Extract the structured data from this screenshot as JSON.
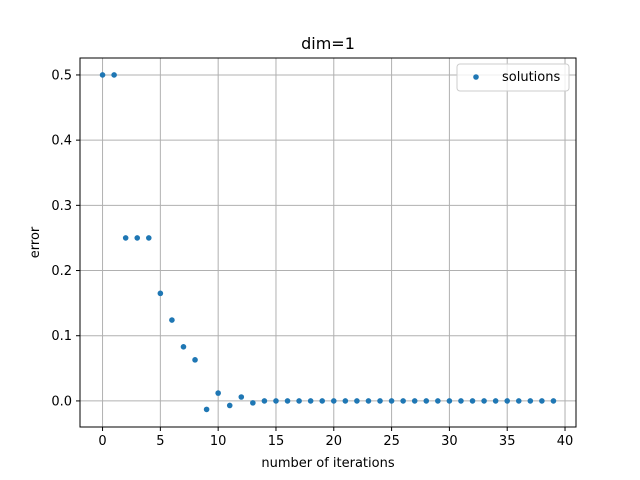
{
  "chart_data": {
    "type": "scatter",
    "title": "dim=1",
    "xlabel": "number of iterations",
    "ylabel": "error",
    "xlim": [
      -1.95,
      40.95
    ],
    "ylim": [
      -0.04,
      0.526
    ],
    "xticks": [
      0,
      5,
      10,
      15,
      20,
      25,
      30,
      35,
      40
    ],
    "yticks": [
      0.0,
      0.1,
      0.2,
      0.3,
      0.4,
      0.5
    ],
    "ytick_labels": [
      "0.0",
      "0.1",
      "0.2",
      "0.3",
      "0.4",
      "0.5"
    ],
    "grid": true,
    "legend_position": "upper right",
    "series": [
      {
        "name": "solutions",
        "color": "#1f77b4",
        "x": [
          0,
          1,
          2,
          3,
          4,
          5,
          6,
          7,
          8,
          9,
          10,
          11,
          12,
          13,
          14,
          15,
          16,
          17,
          18,
          19,
          20,
          21,
          22,
          23,
          24,
          25,
          26,
          27,
          28,
          29,
          30,
          31,
          32,
          33,
          34,
          35,
          36,
          37,
          38,
          39
        ],
        "y": [
          0.5,
          0.5,
          0.25,
          0.25,
          0.25,
          0.165,
          0.124,
          0.083,
          0.063,
          -0.013,
          0.012,
          -0.007,
          0.006,
          -0.003,
          0.0,
          0.0,
          0.0,
          0.0,
          0.0,
          0.0,
          0.0,
          0.0,
          0.0,
          0.0,
          0.0,
          0.0,
          0.0,
          0.0,
          0.0,
          0.0,
          0.0,
          0.0,
          0.0,
          0.0,
          0.0,
          0.0,
          0.0,
          0.0,
          0.0,
          0.0
        ]
      }
    ]
  }
}
